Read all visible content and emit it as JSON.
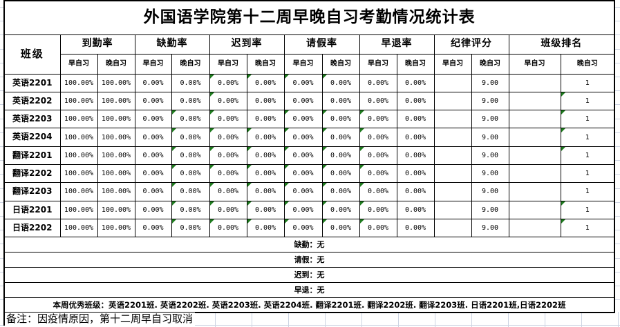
{
  "title": "外国语学院第十二周早晚自习考勤情况统计表",
  "table": {
    "corner_header": "班级",
    "groups": [
      {
        "label": "到勤率"
      },
      {
        "label": "缺勤率"
      },
      {
        "label": "迟到率"
      },
      {
        "label": "请假率"
      },
      {
        "label": "早退率"
      },
      {
        "label": "纪律评分"
      },
      {
        "label": "班级排名"
      }
    ],
    "sub_headers": [
      "早自习",
      "晚自习"
    ],
    "column_keys": [
      "到勤率-早自习",
      "到勤率-晚自习",
      "缺勤率-早自习",
      "缺勤率-晚自习",
      "迟到率-早自习",
      "迟到率-晚自习",
      "请假率-早自习",
      "请假率-晚自习",
      "早退率-早自习",
      "早退率-晚自习",
      "纪律评分-早自习",
      "纪律评分-晚自习",
      "班级排名-早自习",
      "班级排名-晚自习"
    ],
    "rows": [
      {
        "class_name": "英语2201",
        "values": [
          "100.00%",
          "100.00%",
          "0.00%",
          "0.00%",
          "0.00%",
          "0.00%",
          "0.00%",
          "0.00%",
          "0.00%",
          "0.00%",
          "",
          "9.00",
          "",
          "1"
        ],
        "error_flags": [
          4,
          5,
          6,
          7
        ]
      },
      {
        "class_name": "英语2202",
        "values": [
          "100.00%",
          "100.00%",
          "0.00%",
          "0.00%",
          "0.00%",
          "0.00%",
          "0.00%",
          "0.00%",
          "0.00%",
          "0.00%",
          "",
          "9.00",
          "",
          "1"
        ],
        "error_flags": [
          4,
          13
        ]
      },
      {
        "class_name": "英语2203",
        "values": [
          "100.00%",
          "100.00%",
          "0.00%",
          "0.00%",
          "0.00%",
          "0.00%",
          "0.00%",
          "0.00%",
          "0.00%",
          "0.00%",
          "",
          "9.00",
          "",
          "1"
        ],
        "error_flags": [
          3,
          4,
          6,
          7,
          8,
          13
        ]
      },
      {
        "class_name": "英语2204",
        "values": [
          "100.00%",
          "100.00%",
          "0.00%",
          "0.00%",
          "0.00%",
          "0.00%",
          "0.00%",
          "0.00%",
          "0.00%",
          "0.00%",
          "",
          "9.00",
          "",
          "1"
        ],
        "error_flags": [
          3,
          4,
          5,
          6,
          7,
          8,
          13
        ]
      },
      {
        "class_name": "翻译2201",
        "values": [
          "100.00%",
          "100.00%",
          "0.00%",
          "0.00%",
          "0.00%",
          "0.00%",
          "0.00%",
          "0.00%",
          "0.00%",
          "0.00%",
          "",
          "9.00",
          "",
          "1"
        ],
        "error_flags": [
          3,
          4,
          5,
          6,
          7,
          8,
          13
        ]
      },
      {
        "class_name": "翻译2202",
        "values": [
          "100.00%",
          "100.00%",
          "0.00%",
          "0.00%",
          "0.00%",
          "0.00%",
          "0.00%",
          "0.00%",
          "0.00%",
          "0.00%",
          "",
          "9.00",
          "",
          "1"
        ],
        "error_flags": [
          3,
          4,
          5,
          6,
          7,
          8
        ]
      },
      {
        "class_name": "翻译2203",
        "values": [
          "100.00%",
          "100.00%",
          "0.00%",
          "0.00%",
          "0.00%",
          "0.00%",
          "0.00%",
          "0.00%",
          "0.00%",
          "0.00%",
          "",
          "9.00",
          "",
          "1"
        ],
        "error_flags": [
          3,
          4,
          5,
          6,
          7,
          8
        ]
      },
      {
        "class_name": "日语2201",
        "values": [
          "100.00%",
          "100.00%",
          "0.00%",
          "0.00%",
          "0.00%",
          "0.00%",
          "0.00%",
          "0.00%",
          "0.00%",
          "0.00%",
          "",
          "9.00",
          "",
          "1"
        ],
        "error_flags": [
          3,
          4,
          5,
          6,
          7,
          8,
          13
        ]
      },
      {
        "class_name": "日语2202",
        "values": [
          "100.00%",
          "100.00%",
          "0.00%",
          "0.00%",
          "0.00%",
          "0.00%",
          "0.00%",
          "0.00%",
          "0.00%",
          "0.00%",
          "",
          "9.00",
          "",
          "1"
        ],
        "error_flags": [
          3,
          4,
          5,
          6,
          7,
          8,
          13
        ]
      }
    ]
  },
  "summary_rows": [
    "缺勤：无",
    "请假：无",
    "迟到：无",
    "早退：无"
  ],
  "excellent_line": "本周优秀班级：英语2201班. 英语2202班. 英语2203班. 英语2204班. 翻译2201班. 翻译2202班. 翻译2203班. 日语2201班,日语2202班",
  "remark": "备注：因疫情原因，第十二周早自习取消",
  "colors": {
    "border": "#000000",
    "gridline": "#ccd3e2",
    "error_triangle": "#1e7b1e",
    "background": "#ffffff"
  }
}
